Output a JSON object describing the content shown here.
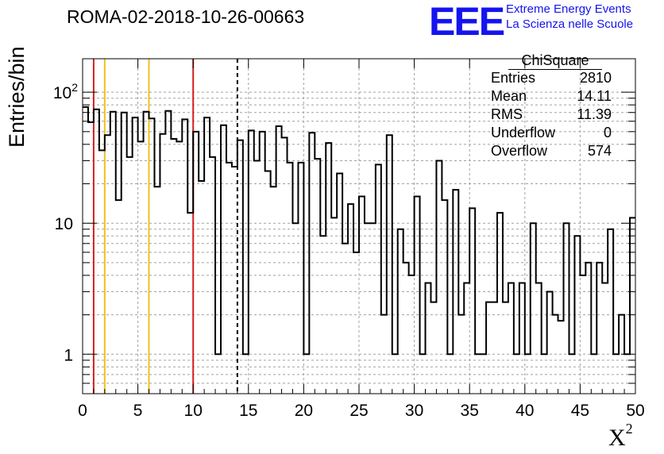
{
  "title": "ROMA-02-2018-10-26-00663",
  "logo": {
    "mark": "EEE",
    "line1": "Extreme Energy Events",
    "line2": "La Scienza nelle Scuole",
    "color": "#1414f0"
  },
  "stats_box": {
    "title": "ChiSquare",
    "rows": [
      {
        "label": "Entries",
        "value": "2810"
      },
      {
        "label": "Mean",
        "value": "14.11"
      },
      {
        "label": "RMS",
        "value": "11.39"
      },
      {
        "label": "Underflow",
        "value": "0"
      },
      {
        "label": "Overflow",
        "value": "574"
      }
    ]
  },
  "chart_data": {
    "type": "histogram",
    "title": "ROMA-02-2018-10-26-00663",
    "xlabel": "X²",
    "ylabel": "Entries/bin",
    "xlim": [
      0,
      50
    ],
    "ylim": [
      0.5,
      180
    ],
    "yscale": "log",
    "grid": true,
    "bin_width": 0.5,
    "x_ticks": [
      "0",
      "5",
      "10",
      "15",
      "20",
      "25",
      "30",
      "35",
      "40",
      "45",
      "50"
    ],
    "y_ticks": [
      {
        "value": 1,
        "label": "1"
      },
      {
        "value": 10,
        "label": "10"
      },
      {
        "value": 100,
        "label": "10",
        "sup": "2"
      }
    ],
    "bin_counts": [
      77,
      59,
      74,
      36,
      47,
      71,
      15,
      70,
      32,
      64,
      42,
      71,
      63,
      19,
      48,
      72,
      44,
      42,
      62,
      12,
      50,
      21,
      64,
      32,
      1,
      56,
      29,
      27,
      43,
      1,
      51,
      30,
      50,
      25,
      19,
      55,
      45,
      29,
      10,
      29,
      1,
      49,
      31,
      8,
      41,
      11,
      24,
      7,
      14,
      6,
      16,
      10,
      10,
      28,
      2,
      47,
      1,
      9,
      5,
      4,
      16,
      1,
      3.5,
      2.5,
      30,
      15,
      1,
      18,
      2,
      3.5,
      13,
      1,
      1,
      2.5,
      2.5,
      12,
      2.5,
      3.5,
      1,
      3.5,
      1,
      10,
      3.5,
      1,
      3,
      2,
      1.8,
      10,
      1,
      8,
      4,
      5,
      1,
      5,
      3.5,
      9,
      1,
      2,
      1,
      11
    ],
    "vertical_lines": [
      {
        "x": 1,
        "color": "#d42020",
        "style": "solid"
      },
      {
        "x": 2,
        "color": "#f0c020",
        "style": "solid"
      },
      {
        "x": 6,
        "color": "#f0c020",
        "style": "solid"
      },
      {
        "x": 10,
        "color": "#d42020",
        "style": "solid"
      },
      {
        "x": 14,
        "color": "#000000",
        "style": "dashed"
      }
    ]
  }
}
